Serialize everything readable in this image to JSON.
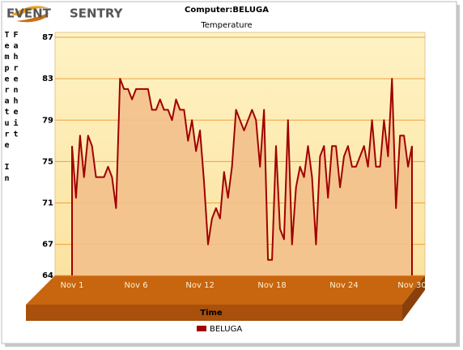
{
  "logo": {
    "left": "EVENT",
    "right": "SENTRY"
  },
  "chart_data": {
    "type": "area",
    "title": "Computer:BELUGA",
    "subtitle": "Temperature",
    "y_label": "Temperature In Fahrenheit",
    "x_label": "Time",
    "categories": [
      "Nov 1",
      null,
      null,
      null,
      null,
      null,
      null,
      null,
      null,
      null,
      null,
      null,
      null,
      null,
      null,
      null,
      "Nov 6",
      null,
      null,
      null,
      null,
      null,
      null,
      null,
      null,
      null,
      null,
      null,
      null,
      null,
      null,
      null,
      "Nov 12",
      null,
      null,
      null,
      null,
      null,
      null,
      null,
      null,
      null,
      null,
      null,
      null,
      null,
      null,
      null,
      null,
      null,
      "Nov 18",
      null,
      null,
      null,
      null,
      null,
      null,
      null,
      null,
      null,
      null,
      null,
      null,
      null,
      null,
      null,
      null,
      null,
      "Nov 24",
      null,
      null,
      null,
      null,
      null,
      null,
      null,
      null,
      null,
      null,
      null,
      null,
      null,
      null,
      null,
      null,
      "Nov 30"
    ],
    "series": [
      {
        "name": "BELUGA",
        "color": "#a00000",
        "fill": "#f3c08c",
        "values": [
          76.5,
          71.5,
          77.5,
          73.5,
          77.5,
          76.5,
          73.5,
          73.5,
          73.5,
          74.5,
          73.5,
          70.5,
          83,
          82,
          82,
          81,
          82,
          82,
          82,
          82,
          80,
          80,
          81,
          80,
          80,
          79,
          81,
          80,
          80,
          77,
          79,
          76,
          78,
          73,
          67,
          69.5,
          70.5,
          69.5,
          74,
          71.5,
          74.5,
          80,
          79,
          78,
          79,
          80,
          79,
          74.5,
          80,
          65.5,
          65.5,
          76.5,
          68.5,
          67.5,
          79,
          67,
          72.5,
          74.5,
          73.5,
          76.5,
          73.5,
          67,
          75.5,
          76.5,
          71.5,
          76.5,
          76.5,
          72.5,
          75.5,
          76.5,
          74.5,
          74.5,
          75.5,
          76.5,
          74.5,
          79,
          74.5,
          74.5,
          79,
          75.5,
          83,
          70.5,
          77.5,
          77.5,
          74.5,
          76.5
        ]
      }
    ],
    "ylim": [
      64,
      87
    ],
    "yticks": [
      64,
      67,
      71,
      75,
      79,
      83,
      87
    ],
    "grid": true
  }
}
